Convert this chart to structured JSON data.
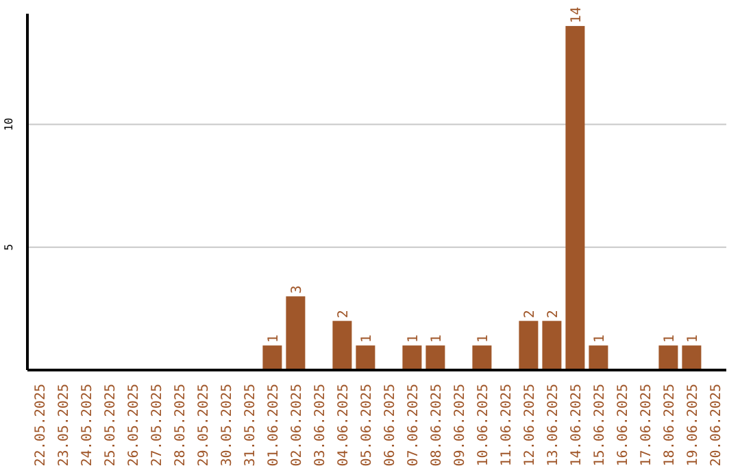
{
  "chart_data": {
    "type": "bar",
    "categories": [
      "22.05.2025",
      "23.05.2025",
      "24.05.2025",
      "25.05.2025",
      "26.05.2025",
      "27.05.2025",
      "28.05.2025",
      "29.05.2025",
      "30.05.2025",
      "31.05.2025",
      "01.06.2025",
      "02.06.2025",
      "03.06.2025",
      "04.06.2025",
      "05.06.2025",
      "06.06.2025",
      "07.06.2025",
      "08.06.2025",
      "09.06.2025",
      "10.06.2025",
      "11.06.2025",
      "12.06.2025",
      "13.06.2025",
      "14.06.2025",
      "15.06.2025",
      "16.06.2025",
      "17.06.2025",
      "18.06.2025",
      "19.06.2025",
      "20.06.2025"
    ],
    "values": [
      0,
      0,
      0,
      0,
      0,
      0,
      0,
      0,
      0,
      0,
      1,
      3,
      0,
      2,
      1,
      0,
      1,
      1,
      0,
      1,
      0,
      2,
      2,
      14,
      1,
      0,
      0,
      1,
      1,
      0
    ],
    "value_labels": [
      null,
      null,
      null,
      null,
      null,
      null,
      null,
      null,
      null,
      null,
      "1",
      "3",
      null,
      "2",
      "1",
      null,
      "1",
      "1",
      null,
      "1",
      null,
      "2",
      "2",
      "14",
      "1",
      null,
      null,
      "1",
      "1",
      null
    ],
    "color": "#a0572a",
    "ylim": [
      0,
      14.5
    ],
    "yticks": [
      5,
      10
    ],
    "grid": "y"
  }
}
